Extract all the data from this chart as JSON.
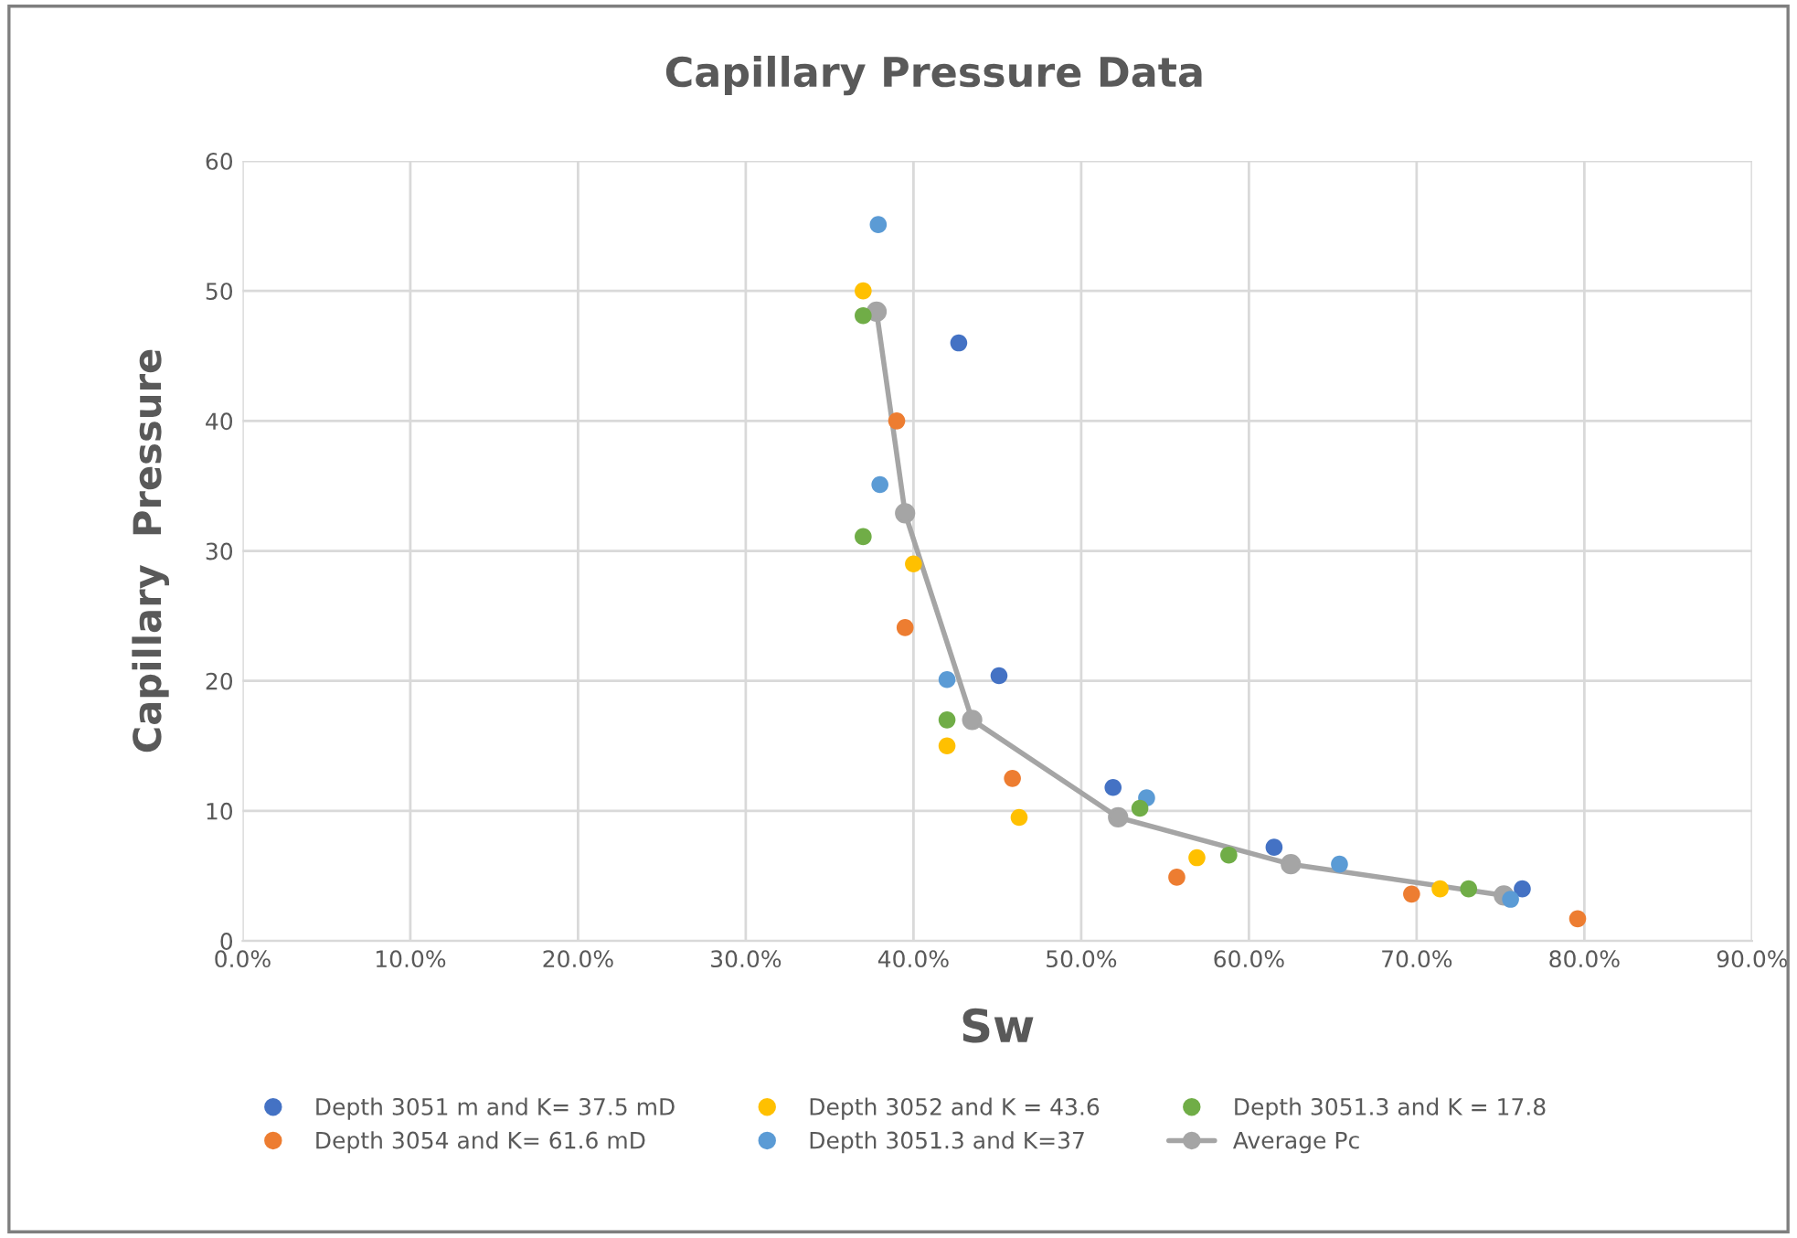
{
  "chart_data": {
    "type": "scatter",
    "title": "Capillary Pressure Data",
    "xlabel": "Sw",
    "ylabel": "Capillary  Pressure",
    "xlim": [
      0,
      90
    ],
    "ylim": [
      0,
      60
    ],
    "xticks": [
      {
        "value": 0,
        "label": "0.0%"
      },
      {
        "value": 10,
        "label": "10.0%"
      },
      {
        "value": 20,
        "label": "20.0%"
      },
      {
        "value": 30,
        "label": "30.0%"
      },
      {
        "value": 40,
        "label": "40.0%"
      },
      {
        "value": 50,
        "label": "50.0%"
      },
      {
        "value": 60,
        "label": "60.0%"
      },
      {
        "value": 70,
        "label": "70.0%"
      },
      {
        "value": 80,
        "label": "80.0%"
      },
      {
        "value": 90,
        "label": "90.0%"
      }
    ],
    "yticks": [
      0,
      10,
      20,
      30,
      40,
      50,
      60
    ],
    "grid": true,
    "legend": "bottom",
    "marker": "circle",
    "series": [
      {
        "name": "Depth 3051 m and K= 37.5 mD",
        "color": "#4472c4",
        "x": [
          42.7,
          45.1,
          51.9,
          61.5,
          76.3
        ],
        "values": [
          46.0,
          20.4,
          11.8,
          7.2,
          4.0
        ]
      },
      {
        "name": "Depth 3054 and K= 61.6 mD",
        "color": "#ed7d31",
        "x": [
          39.0,
          39.5,
          45.9,
          55.7,
          69.7,
          79.6
        ],
        "values": [
          40.0,
          24.1,
          12.5,
          4.9,
          3.6,
          1.7
        ]
      },
      {
        "name": "Depth 3052 and K = 43.6",
        "color": "#ffc000",
        "x": [
          37.0,
          40.0,
          42.0,
          46.3,
          56.9,
          71.4
        ],
        "values": [
          50.0,
          29.0,
          15.0,
          9.5,
          6.4,
          4.0
        ]
      },
      {
        "name": "Depth 3051.3 and K=37",
        "color": "#5b9bd5",
        "x": [
          37.9,
          38.0,
          42.0,
          53.9,
          65.4,
          75.6
        ],
        "values": [
          55.1,
          35.1,
          20.1,
          11.0,
          5.9,
          3.2
        ]
      },
      {
        "name": "Depth 3051.3 and K = 17.8",
        "color": "#70ad47",
        "x": [
          37.0,
          37.0,
          42.0,
          53.5,
          58.8,
          73.1
        ],
        "values": [
          48.1,
          31.1,
          17.0,
          10.2,
          6.6,
          4.0
        ]
      },
      {
        "name": "Average Pc",
        "type": "line",
        "line_style": "solid",
        "color": "#a5a5a5",
        "x": [
          37.8,
          39.5,
          43.5,
          52.2,
          62.5,
          75.2
        ],
        "values": [
          48.4,
          32.9,
          17.0,
          9.5,
          5.9,
          3.5
        ]
      }
    ]
  }
}
